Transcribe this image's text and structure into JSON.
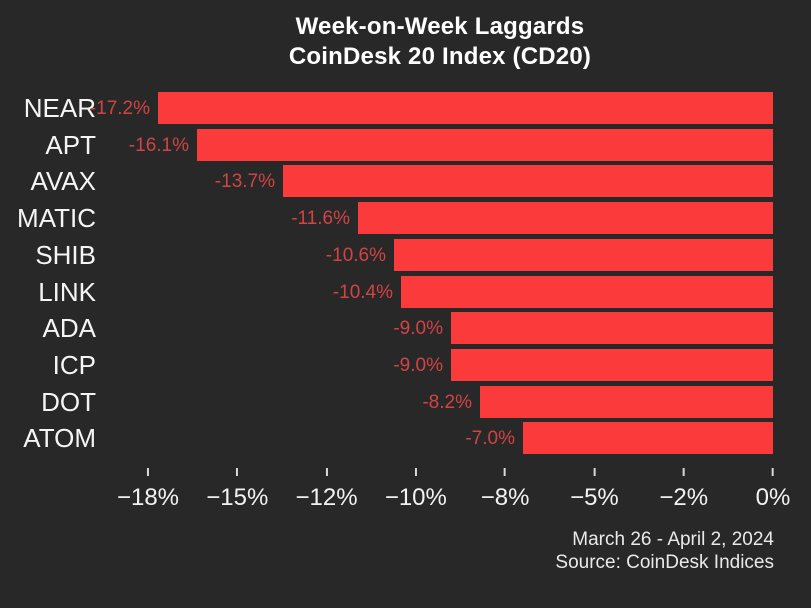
{
  "title": {
    "line1": "Week-on-Week Laggards",
    "line2": "CoinDesk 20 Index (CD20)"
  },
  "footer": {
    "date_range": "March 26 - April 2, 2024",
    "source": "Source: CoinDesk Indices"
  },
  "colors": {
    "background": "#282828",
    "bar": "#fb3b3b",
    "value_label": "#d24343",
    "text": "#f2f2f2"
  },
  "chart_data": {
    "type": "bar",
    "orientation": "horizontal",
    "title": "Week-on-Week Laggards CoinDesk 20 Index (CD20)",
    "categories": [
      "NEAR",
      "APT",
      "AVAX",
      "MATIC",
      "SHIB",
      "LINK",
      "ADA",
      "ICP",
      "DOT",
      "ATOM"
    ],
    "values": [
      -17.2,
      -16.1,
      -13.7,
      -11.6,
      -10.6,
      -10.4,
      -9.0,
      -9.0,
      -8.2,
      -7.0
    ],
    "value_labels": [
      "-17.2%",
      "-16.1%",
      "-13.7%",
      "-11.6%",
      "-10.6%",
      "-10.4%",
      "-9.0%",
      "-9.0%",
      "-8.2%",
      "-7.0%"
    ],
    "x_tick_labels": [
      "−18%",
      "−15%",
      "−12%",
      "−10%",
      "−8%",
      "−5%",
      "−2%",
      "0%"
    ],
    "xlim": [
      -18,
      0
    ],
    "xlabel": "",
    "ylabel": "",
    "grid": false,
    "legend": false
  }
}
